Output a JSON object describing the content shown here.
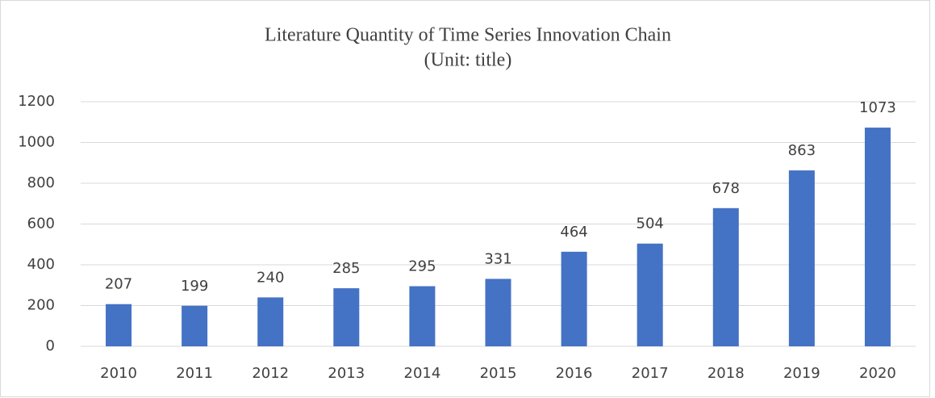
{
  "chart_data": {
    "type": "bar",
    "title": "Literature Quantity of Time Series Innovation Chain",
    "subtitle": "(Unit: title)",
    "categories": [
      "2010",
      "2011",
      "2012",
      "2013",
      "2014",
      "2015",
      "2016",
      "2017",
      "2018",
      "2019",
      "2020"
    ],
    "values": [
      207,
      199,
      240,
      285,
      295,
      331,
      464,
      504,
      678,
      863,
      1073
    ],
    "color": "#4472c4",
    "ylim": [
      0,
      1200
    ],
    "yticks": [
      0,
      200,
      400,
      600,
      800,
      1000,
      1200
    ],
    "grid": true
  }
}
